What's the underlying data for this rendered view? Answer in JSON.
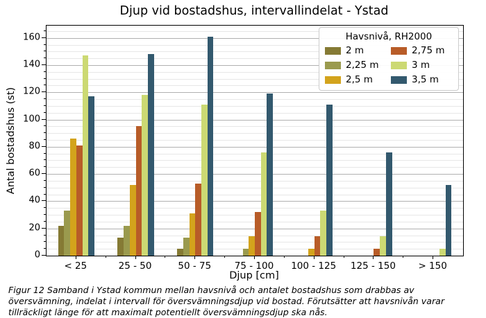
{
  "chart_data": {
    "type": "bar",
    "title": "Djup vid bostadshus, intervallindelat - Ystad",
    "xlabel": "Djup [cm]",
    "ylabel": "Antal bostadshus (st)",
    "categories": [
      "< 25",
      "25 - 50",
      "50 - 75",
      "75 - 100",
      "100 - 125",
      "125 - 150",
      "> 150"
    ],
    "legend_title": "Havsnivå, RH2000",
    "series": [
      {
        "name": "2 m",
        "color": "#857a34",
        "values": [
          22,
          13,
          5,
          0,
          0,
          0,
          0
        ]
      },
      {
        "name": "2,25 m",
        "color": "#9a9a4e",
        "values": [
          33,
          22,
          13,
          5,
          0,
          0,
          0
        ]
      },
      {
        "name": "2,5 m",
        "color": "#d3a31c",
        "values": [
          86,
          52,
          31,
          14,
          5,
          0,
          0
        ]
      },
      {
        "name": "2,75 m",
        "color": "#b85c28",
        "values": [
          81,
          95,
          53,
          32,
          14,
          5,
          0
        ]
      },
      {
        "name": "3 m",
        "color": "#ccd973",
        "values": [
          147,
          118,
          111,
          76,
          33,
          14,
          5
        ]
      },
      {
        "name": "3,5 m",
        "color": "#33596e",
        "values": [
          117,
          148,
          161,
          119,
          111,
          76,
          52
        ]
      }
    ],
    "ylim": [
      0,
      169
    ],
    "yticks": [
      0,
      20,
      40,
      60,
      80,
      100,
      120,
      140,
      160
    ],
    "minor_tick_step": 5,
    "grid": "major+minor horizontal",
    "legend_position": "upper right"
  },
  "caption": "Figur 12 Samband i Ystad kommun mellan havsnivå och antalet bostadshus som drabbas av översvämning, indelat i intervall för översvämningsdjup vid bostad. Förutsätter att havsnivån varar tillräckligt länge för att maximalt potentiellt översvämningsdjup ska nås."
}
